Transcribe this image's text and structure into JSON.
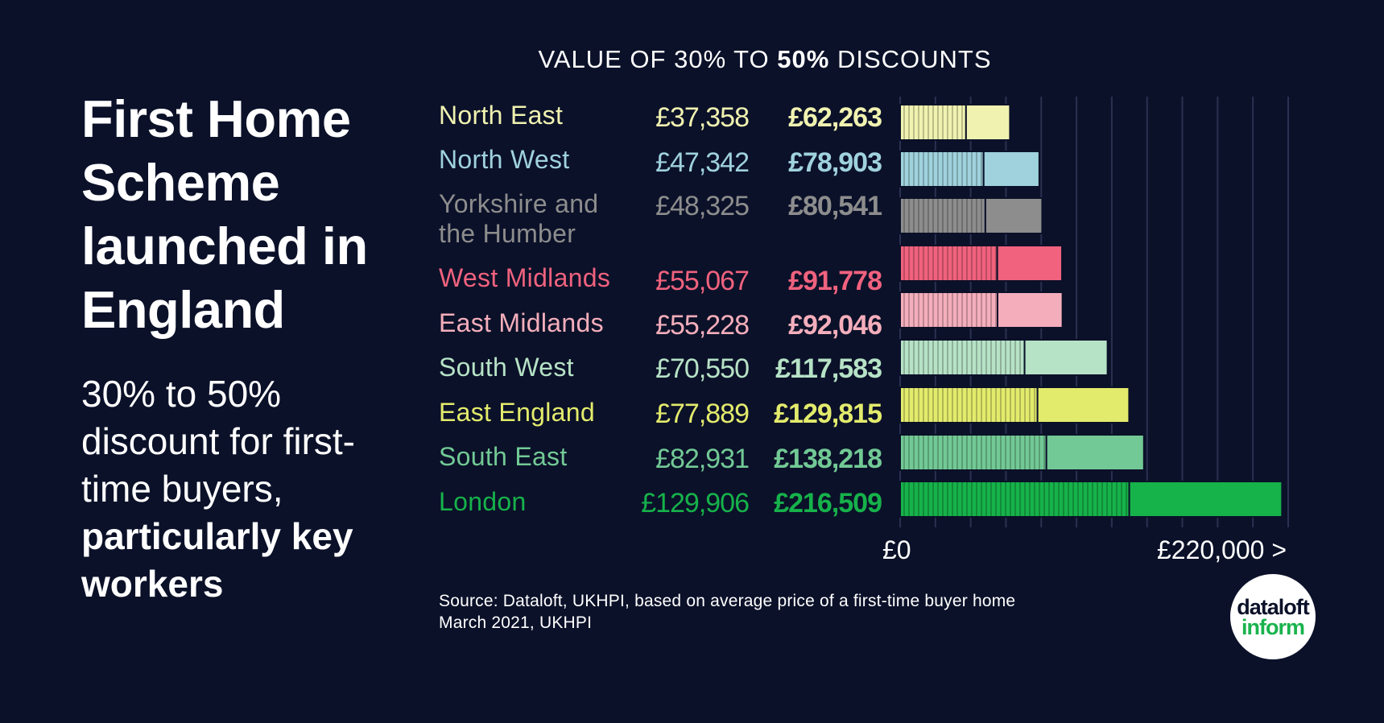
{
  "headline": "First Home Scheme launched in England",
  "subhead": {
    "normal": "30% to 50% discount for first-time buyers,",
    "strong": "particularly key workers"
  },
  "chart_data": {
    "type": "bar",
    "orientation": "horizontal",
    "title_prefix": "VALUE OF 30% TO ",
    "title_strong": "50%",
    "title_suffix": " DISCOUNTS",
    "categories": [
      "North East",
      "North West",
      "Yorkshire and the Humber",
      "West Midlands",
      "East Midlands",
      "South West",
      "East England",
      "South East",
      "London"
    ],
    "series": [
      {
        "name": "30%",
        "values": [
          37358,
          47342,
          48325,
          55067,
          55228,
          70550,
          77889,
          82931,
          129906
        ]
      },
      {
        "name": "50%",
        "values": [
          62263,
          78903,
          80541,
          91778,
          92046,
          117583,
          129815,
          138218,
          216509
        ]
      }
    ],
    "value_labels_30": [
      "£37,358",
      "£47,342",
      "£48,325",
      "£55,067",
      "£55,228",
      "£70,550",
      "£77,889",
      "£82,931",
      "£129,906"
    ],
    "value_labels_50": [
      "£62,263",
      "£78,903",
      "£80,541",
      "£91,778",
      "£92,046",
      "£117,583",
      "£129,815",
      "£138,218",
      "£216,509"
    ],
    "colors": [
      "#f0f2b0",
      "#9fd2dc",
      "#8d8d8d",
      "#f0627e",
      "#f4aebb",
      "#b6e2c6",
      "#e3eb6c",
      "#72c995",
      "#16b24a"
    ],
    "xlim": [
      0,
      220000
    ],
    "tick_labels": {
      "min": "£0",
      "max": "£220,000 >"
    },
    "grid": true
  },
  "source": {
    "line1": "Source: Dataloft, UKHPI, based on average price of a first-time buyer home",
    "line2": "March 2021, UKHPI"
  },
  "logo": {
    "line1": "dataloft",
    "line2": "inform"
  }
}
